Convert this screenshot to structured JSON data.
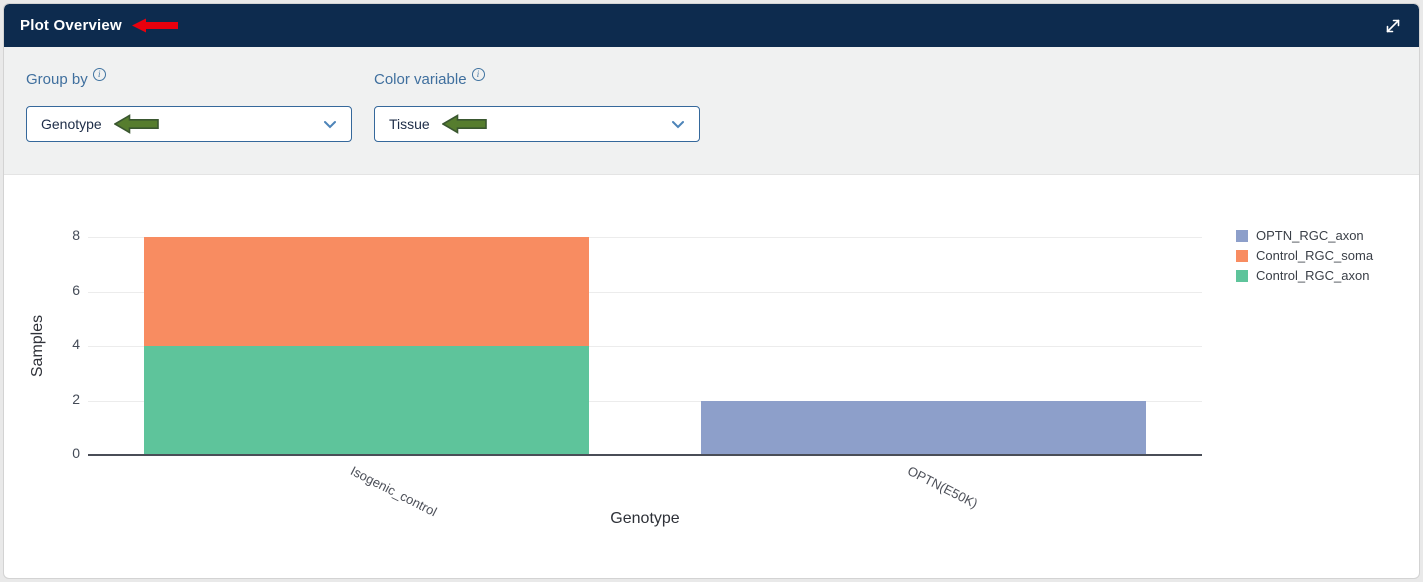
{
  "header": {
    "title": "Plot Overview"
  },
  "controls": {
    "group_by": {
      "label": "Group by",
      "value": "Genotype"
    },
    "color_variable": {
      "label": "Color variable",
      "value": "Tissue"
    }
  },
  "annotations": {
    "red_arrow_color": "#e8000d",
    "green_arrow_color": "#567d2e",
    "green_arrow_stroke": "#3a5730"
  },
  "theme": {
    "header_bg": "#0d2b4e",
    "accent_blue": "#3f6f9e",
    "dropdown_border": "#35689b"
  },
  "chart_data": {
    "type": "bar",
    "stacked": true,
    "categories": [
      "Isogenic_control",
      "OPTN(E50K)"
    ],
    "series": [
      {
        "name": "OPTN_RGC_axon",
        "color": "#8d9fca",
        "values": [
          0,
          2
        ]
      },
      {
        "name": "Control_RGC_soma",
        "color": "#f88c61",
        "values": [
          4,
          0
        ]
      },
      {
        "name": "Control_RGC_axon",
        "color": "#5ec49b",
        "values": [
          4,
          0
        ]
      }
    ],
    "stack_order_bottom_to_top": [
      "Control_RGC_axon",
      "Control_RGC_soma",
      "OPTN_RGC_axon"
    ],
    "xlabel": "Genotype",
    "ylabel": "Samples",
    "yticks": [
      0,
      2,
      4,
      6,
      8
    ],
    "ylim": [
      0,
      8
    ],
    "grid": true,
    "legend_position": "right"
  }
}
